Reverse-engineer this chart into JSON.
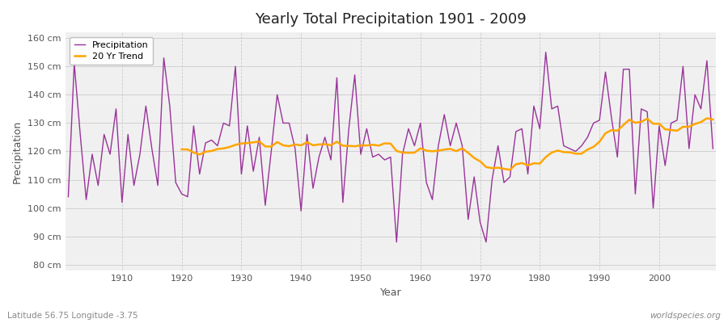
{
  "title": "Yearly Total Precipitation 1901 - 2009",
  "xlabel": "Year",
  "ylabel": "Precipitation",
  "footer_left": "Latitude 56.75 Longitude -3.75",
  "footer_right": "worldspecies.org",
  "legend_entries": [
    "Precipitation",
    "20 Yr Trend"
  ],
  "precip_color": "#993399",
  "trend_color": "#FFA500",
  "bg_color": "#F0F0F0",
  "plot_bg_color": "#EAEAEA",
  "ylim": [
    78,
    162
  ],
  "yticks": [
    80,
    90,
    100,
    110,
    120,
    130,
    140,
    150,
    160
  ],
  "ytick_labels": [
    "80 cm",
    "90 cm",
    "100 cm",
    "110 cm",
    "120 cm",
    "130 cm",
    "140 cm",
    "150 cm",
    "160 cm"
  ],
  "start_year": 1901,
  "end_year": 2009,
  "precipitation": [
    104,
    151,
    126,
    103,
    119,
    108,
    126,
    119,
    135,
    102,
    126,
    108,
    119,
    136,
    121,
    108,
    153,
    136,
    109,
    105,
    104,
    129,
    112,
    123,
    124,
    122,
    130,
    129,
    150,
    112,
    129,
    113,
    125,
    101,
    120,
    140,
    130,
    130,
    121,
    99,
    126,
    107,
    118,
    125,
    117,
    146,
    102,
    128,
    147,
    119,
    128,
    118,
    119,
    117,
    118,
    88,
    119,
    128,
    122,
    130,
    109,
    103,
    122,
    133,
    122,
    130,
    122,
    96,
    111,
    95,
    88,
    110,
    122,
    109,
    111,
    127,
    128,
    112,
    136,
    128,
    155,
    135,
    136,
    122,
    121,
    120,
    122,
    125,
    130,
    131,
    148,
    132,
    118,
    149,
    149,
    105,
    135,
    134,
    100,
    129,
    115,
    130,
    131,
    150,
    121,
    140,
    135,
    152,
    121
  ]
}
